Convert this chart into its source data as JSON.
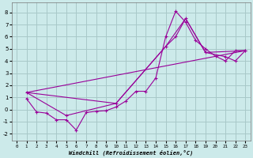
{
  "xlabel": "Windchill (Refroidissement éolien,°C)",
  "background_color": "#cceaea",
  "grid_color": "#a8c8c8",
  "line_color": "#990099",
  "xlim": [
    -0.5,
    23.5
  ],
  "ylim": [
    -2.6,
    8.8
  ],
  "xticks": [
    0,
    1,
    2,
    3,
    4,
    5,
    6,
    7,
    8,
    9,
    10,
    11,
    12,
    13,
    14,
    15,
    16,
    17,
    18,
    19,
    20,
    21,
    22,
    23
  ],
  "yticks": [
    -2,
    -1,
    0,
    1,
    2,
    3,
    4,
    5,
    6,
    7,
    8
  ],
  "line1_x": [
    1,
    2,
    3,
    4,
    5,
    6,
    7,
    8,
    9,
    10,
    11,
    12,
    13,
    14,
    15,
    16,
    17,
    18,
    19,
    20,
    21,
    22,
    23
  ],
  "line1_y": [
    0.9,
    -0.2,
    -0.3,
    -0.85,
    -0.85,
    -1.7,
    -0.25,
    -0.15,
    -0.1,
    0.2,
    0.7,
    1.5,
    1.5,
    2.6,
    6.0,
    8.1,
    7.2,
    5.7,
    5.0,
    4.4,
    4.0,
    4.85,
    4.85
  ],
  "line2_x": [
    1,
    5,
    10,
    15,
    16,
    17,
    19,
    21,
    22,
    23
  ],
  "line2_y": [
    1.4,
    -0.5,
    0.5,
    5.2,
    6.0,
    7.5,
    4.7,
    4.35,
    4.0,
    4.85
  ],
  "line3_x": [
    1,
    23
  ],
  "line3_y": [
    1.4,
    4.85
  ],
  "line4_x": [
    1,
    10,
    15,
    17,
    19,
    23
  ],
  "line4_y": [
    1.4,
    0.5,
    5.2,
    7.5,
    4.7,
    4.85
  ]
}
